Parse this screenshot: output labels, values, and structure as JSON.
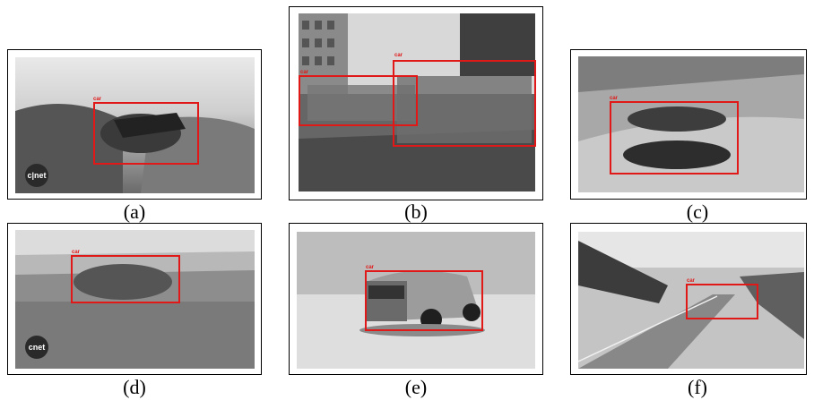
{
  "panels": [
    {
      "caption": "(a)",
      "box_label": "car",
      "logo": "c|net"
    },
    {
      "caption": "(b)",
      "box_label": "car"
    },
    {
      "caption": "(c)",
      "box_label": "car"
    },
    {
      "caption": "(d)",
      "box_label": "car",
      "logo": "cnet"
    },
    {
      "caption": "(e)",
      "box_label": "car"
    },
    {
      "caption": "(f)",
      "box_label": "car"
    }
  ]
}
